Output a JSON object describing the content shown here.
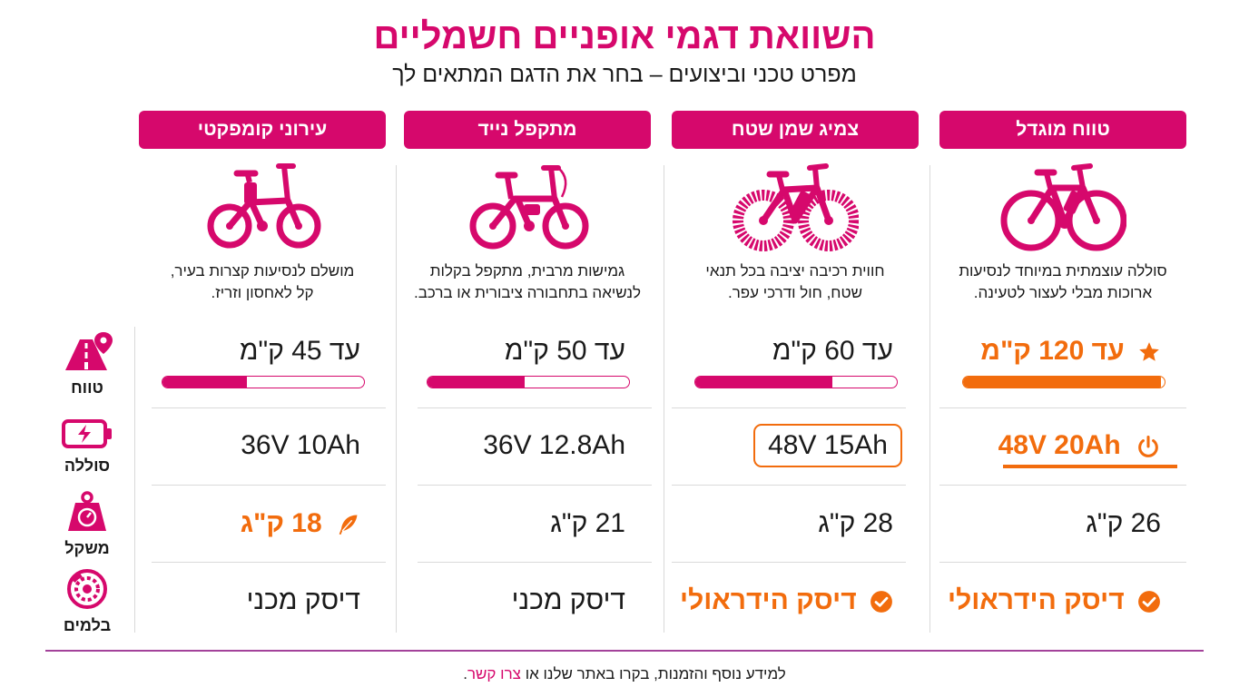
{
  "header": {
    "title": "השוואת דגמי אופניים חשמליים",
    "subtitle": "מפרט טכני וביצועים – בחר את הדגם המתאים לך"
  },
  "rows": {
    "range": "טווח",
    "battery": "סוללה",
    "weight": "משקל",
    "brakes": "בלמים"
  },
  "models": [
    {
      "name": "טווח מוגדל",
      "desc_line1": "סוללה עוצמתית במיוחד לנסיעות",
      "desc_line2": "ארוכות מבלי לעצור לטעינה.",
      "range": "עד 120 ק\"מ",
      "range_fraction": 0.98,
      "battery": "48V 20Ah",
      "weight": "26 ק\"ג",
      "brakes": "דיסק הידראולי"
    },
    {
      "name": "צמיג שמן שטח",
      "desc_line1": "חווית רכיבה יציבה בכל תנאי",
      "desc_line2": "שטח, חול ודרכי עפר.",
      "range": "עד 60 ק\"מ",
      "range_fraction": 0.68,
      "battery": "48V 15Ah",
      "weight": "28 ק\"ג",
      "brakes": "דיסק הידראולי"
    },
    {
      "name": "מתקפל נייד",
      "desc_line1": "גמישות מרבית, מתקפל בקלות",
      "desc_line2": "לנשיאה בתחבורה ציבורית או ברכב.",
      "range": "עד 50 ק\"מ",
      "range_fraction": 0.48,
      "battery": "36V 12.8Ah",
      "weight": "21 ק\"ג",
      "brakes": "דיסק מכני"
    },
    {
      "name": "עירוני קומפקטי",
      "desc_line1": "מושלם לנסיעות קצרות בעיר,",
      "desc_line2": "קל לאחסון וזריז.",
      "range": "עד 45 ק\"מ",
      "range_fraction": 0.42,
      "battery": "36V 10Ah",
      "weight": "18 ק\"ג",
      "brakes": "דיסק מכני"
    }
  ],
  "footer": {
    "text": "למידע נוסף והזמנות, בקרו באתר שלנו או",
    "link": "צרו קשר",
    "end": "."
  },
  "colors": {
    "magenta": "#d6086c",
    "orange": "#f26c0d"
  },
  "icons": [
    "road-pin-icon",
    "battery-icon",
    "weight-icon",
    "brake-disc-icon",
    "star-icon",
    "power-icon",
    "check-circle-icon",
    "feather-icon",
    "bike-icon"
  ]
}
